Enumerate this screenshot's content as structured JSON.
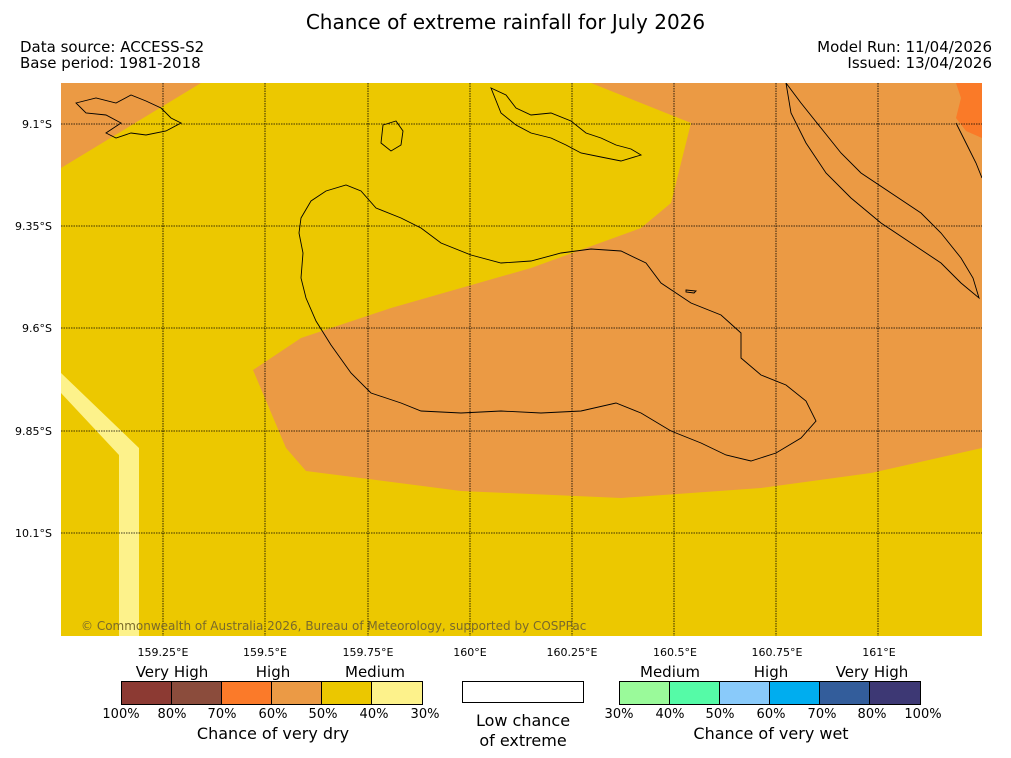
{
  "title": "Chance of extreme rainfall for July 2026",
  "header": {
    "data_source": "Data source: ACCESS-S2",
    "base_period": "Base period: 1981-2018",
    "model_run": "Model Run: 11/04/2026",
    "issued": "Issued: 13/04/2026"
  },
  "map": {
    "latitude_labels": [
      "9.1°S",
      "9.35°S",
      "9.6°S",
      "9.85°S",
      "10.1°S"
    ],
    "longitude_labels": [
      "159.25°E",
      "159.5°E",
      "159.75°E",
      "160°E",
      "160.25°E",
      "160.5°E",
      "160.75°E",
      "161°E"
    ],
    "copyright": "© Commonwealth of Australia 2026, Bureau of Meteorology, supported by COSPPac",
    "colors": {
      "medium_dry": "#ecc800",
      "high_dry_light": "#eb9a44",
      "high_dry_dark": "#fa7a28",
      "low_dry": "#fdf28b"
    }
  },
  "legend": {
    "dry": {
      "categories": [
        "Very High",
        "High",
        "Medium"
      ],
      "colors": [
        "#8c3a33",
        "#8b4c3c",
        "#fb7a29",
        "#eb9a45",
        "#ebc700",
        "#fdf28b"
      ],
      "ticks": [
        "100%",
        "80%",
        "70%",
        "60%",
        "50%",
        "40%",
        "30%"
      ],
      "caption": "Chance of very dry"
    },
    "low": {
      "line1": "Low chance",
      "line2": "of extreme"
    },
    "wet": {
      "categories": [
        "Medium",
        "High",
        "Very High"
      ],
      "colors": [
        "#9afa9a",
        "#55fba7",
        "#89cafa",
        "#00adef",
        "#335d9b",
        "#3d3874"
      ],
      "ticks": [
        "30%",
        "40%",
        "50%",
        "60%",
        "70%",
        "80%",
        "100%"
      ],
      "caption": "Chance of very wet"
    }
  }
}
